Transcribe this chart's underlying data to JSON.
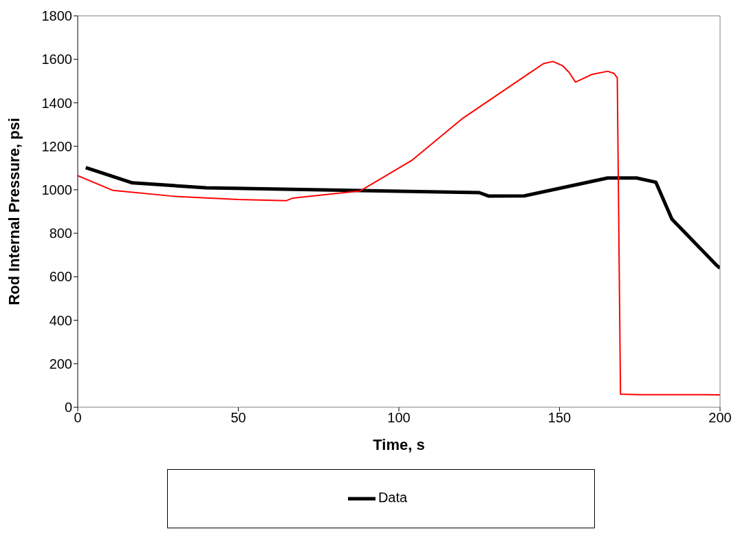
{
  "chart_data": {
    "type": "line",
    "xlabel": "Time, s",
    "ylabel": "Rod Internal Pressure, psi",
    "xlim": [
      0,
      200
    ],
    "xticks": [
      0,
      50,
      100,
      150,
      200
    ],
    "ylim": [
      0,
      1800
    ],
    "yticks": [
      0,
      200,
      400,
      600,
      800,
      1000,
      1200,
      1400,
      1600,
      1800
    ],
    "grid": false,
    "legend": "bottom",
    "marker": "none",
    "series": [
      {
        "name": "Data",
        "color": "#000000",
        "x": [
          2.5,
          17,
          40,
          125,
          128,
          139,
          165,
          174,
          180,
          185,
          199,
          200
        ],
        "values": [
          1102,
          1032,
          1009,
          987,
          971,
          972,
          1054,
          1054,
          1035,
          865,
          652,
          640
        ]
      },
      {
        "color": "#ff0000",
        "x": [
          0,
          11,
          30,
          50,
          65,
          67,
          88,
          104,
          120,
          140,
          145,
          148,
          151,
          153,
          155,
          160,
          165,
          167,
          168,
          169,
          175,
          195,
          200
        ],
        "values": [
          1065,
          997,
          970,
          955,
          950,
          962,
          995,
          1135,
          1330,
          1530,
          1580,
          1590,
          1570,
          1540,
          1495,
          1530,
          1545,
          1535,
          1515,
          60,
          58,
          58,
          57
        ]
      }
    ]
  }
}
